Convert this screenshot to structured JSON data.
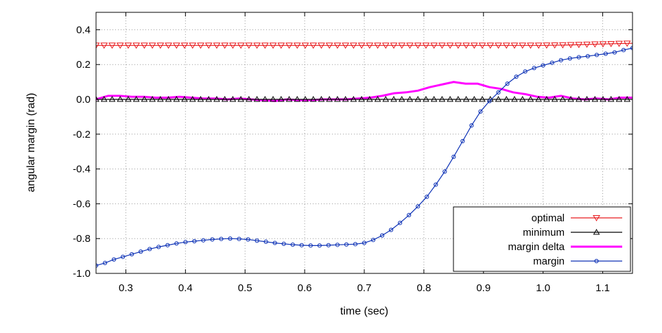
{
  "chart_data": {
    "type": "line",
    "title": "",
    "xlabel": "time (sec)",
    "ylabel": "angular margin (rad)",
    "xlim": [
      0.25,
      1.15
    ],
    "ylim": [
      -1.0,
      0.5
    ],
    "xticks": [
      0.3,
      0.4,
      0.5,
      0.6,
      0.7,
      0.8,
      0.9,
      1.0,
      1.1
    ],
    "xtick_labels": [
      "0.3",
      "0.4",
      "0.5",
      "0.6",
      "0.7",
      "0.8",
      "0.9",
      "1.0",
      "1.1"
    ],
    "yticks": [
      -1.0,
      -0.8,
      -0.6,
      -0.4,
      -0.2,
      0.0,
      0.2,
      0.4
    ],
    "ytick_labels": [
      "-1.0",
      "-0.8",
      "-0.6",
      "-0.4",
      "-0.2",
      "0.0",
      "0.2",
      "0.4"
    ],
    "grid": true,
    "legend_position": "bottom-right",
    "series": [
      {
        "name": "optimal",
        "color": "#e8191c",
        "marker": "triangle-down",
        "x": [
          0.25,
          0.3,
          0.35,
          0.4,
          0.45,
          0.5,
          0.55,
          0.6,
          0.65,
          0.7,
          0.75,
          0.8,
          0.85,
          0.9,
          0.95,
          1.0,
          1.05,
          1.1,
          1.15
        ],
        "y": [
          0.31,
          0.31,
          0.31,
          0.31,
          0.31,
          0.31,
          0.31,
          0.31,
          0.31,
          0.31,
          0.31,
          0.31,
          0.31,
          0.31,
          0.31,
          0.31,
          0.313,
          0.318,
          0.322
        ]
      },
      {
        "name": "minimum",
        "color": "#000000",
        "marker": "triangle-up",
        "x": [
          0.25,
          1.15
        ],
        "y": [
          0.0,
          0.0
        ]
      },
      {
        "name": "margin delta",
        "color": "#ff00ff",
        "marker": "none",
        "x": [
          0.25,
          0.27,
          0.29,
          0.31,
          0.33,
          0.35,
          0.37,
          0.39,
          0.41,
          0.43,
          0.45,
          0.47,
          0.49,
          0.51,
          0.53,
          0.55,
          0.57,
          0.59,
          0.61,
          0.63,
          0.65,
          0.67,
          0.69,
          0.71,
          0.73,
          0.75,
          0.77,
          0.79,
          0.81,
          0.83,
          0.85,
          0.87,
          0.89,
          0.91,
          0.93,
          0.95,
          0.97,
          0.99,
          1.01,
          1.03,
          1.05,
          1.07,
          1.09,
          1.11,
          1.13,
          1.15
        ],
        "y": [
          0.0,
          0.02,
          0.02,
          0.015,
          0.015,
          0.01,
          0.01,
          0.015,
          0.01,
          0.005,
          0.005,
          0.0,
          0.005,
          0.0,
          -0.005,
          -0.01,
          0.0,
          -0.005,
          -0.005,
          0.0,
          0.0,
          0.0,
          0.005,
          0.01,
          0.02,
          0.035,
          0.04,
          0.05,
          0.07,
          0.085,
          0.1,
          0.09,
          0.09,
          0.07,
          0.06,
          0.04,
          0.03,
          0.015,
          0.01,
          0.02,
          0.005,
          0.0,
          0.005,
          0.0,
          0.01,
          0.01
        ]
      },
      {
        "name": "margin",
        "color": "#0a2fb5",
        "marker": "circle",
        "x": [
          0.25,
          0.265,
          0.28,
          0.295,
          0.31,
          0.325,
          0.34,
          0.355,
          0.37,
          0.385,
          0.4,
          0.415,
          0.43,
          0.445,
          0.46,
          0.475,
          0.49,
          0.505,
          0.52,
          0.535,
          0.55,
          0.565,
          0.58,
          0.595,
          0.61,
          0.625,
          0.64,
          0.655,
          0.67,
          0.685,
          0.7,
          0.715,
          0.73,
          0.745,
          0.76,
          0.775,
          0.79,
          0.805,
          0.82,
          0.835,
          0.85,
          0.865,
          0.88,
          0.895,
          0.91,
          0.925,
          0.94,
          0.955,
          0.97,
          0.985,
          1.0,
          1.015,
          1.03,
          1.045,
          1.06,
          1.075,
          1.09,
          1.105,
          1.12,
          1.135,
          1.15
        ],
        "y": [
          -0.955,
          -0.94,
          -0.92,
          -0.905,
          -0.89,
          -0.875,
          -0.86,
          -0.848,
          -0.838,
          -0.828,
          -0.82,
          -0.815,
          -0.81,
          -0.805,
          -0.802,
          -0.8,
          -0.802,
          -0.805,
          -0.812,
          -0.818,
          -0.825,
          -0.83,
          -0.835,
          -0.838,
          -0.84,
          -0.84,
          -0.838,
          -0.836,
          -0.834,
          -0.832,
          -0.825,
          -0.808,
          -0.782,
          -0.75,
          -0.71,
          -0.665,
          -0.615,
          -0.56,
          -0.49,
          -0.415,
          -0.33,
          -0.24,
          -0.15,
          -0.07,
          -0.01,
          0.04,
          0.09,
          0.13,
          0.16,
          0.18,
          0.195,
          0.21,
          0.225,
          0.235,
          0.242,
          0.248,
          0.255,
          0.262,
          0.27,
          0.283,
          0.295
        ]
      }
    ]
  }
}
